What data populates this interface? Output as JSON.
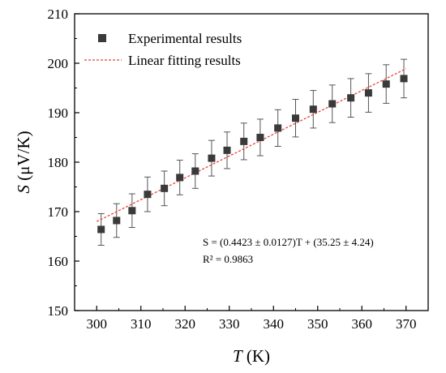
{
  "chart_data": {
    "type": "scatter",
    "title": "",
    "xlabel": {
      "var": "T",
      "unit": " (K)"
    },
    "ylabel": {
      "var": "S",
      "unit": " (μV/K)"
    },
    "xlim": [
      295,
      375
    ],
    "ylim": [
      150,
      210
    ],
    "xticks": [
      300,
      310,
      320,
      330,
      340,
      350,
      360,
      370
    ],
    "yticks": [
      150,
      160,
      170,
      180,
      190,
      200,
      210
    ],
    "grid": false,
    "legend_position": "top-left",
    "series": [
      {
        "name": "Experimental results",
        "kind": "points-with-errorbars",
        "color": "#3a3a3a",
        "x": [
          301,
          304.5,
          308,
          311.5,
          315.3,
          318.8,
          322.3,
          326,
          329.5,
          333.3,
          337,
          341,
          345,
          349,
          353.3,
          357.5,
          361.5,
          365.5,
          369.5
        ],
        "y": [
          166.4,
          168.2,
          170.2,
          173.5,
          174.7,
          176.9,
          178.2,
          180.8,
          182.4,
          184.2,
          185.0,
          186.9,
          188.9,
          190.7,
          191.8,
          193.0,
          194.0,
          195.8,
          196.9
        ],
        "error": [
          3.2,
          3.4,
          3.4,
          3.5,
          3.5,
          3.5,
          3.5,
          3.6,
          3.7,
          3.7,
          3.7,
          3.7,
          3.8,
          3.8,
          3.8,
          3.9,
          3.9,
          3.9,
          3.9
        ]
      },
      {
        "name": "Linear fitting results",
        "kind": "dashed-line",
        "color": "#e8443a",
        "x": [
          300,
          370
        ],
        "y": [
          168.0,
          198.9
        ]
      }
    ],
    "annotation": {
      "line1": "S = (0.4423 ± 0.0127)T + (35.25 ± 4.24)",
      "line2": "R² = 0.9863"
    }
  }
}
